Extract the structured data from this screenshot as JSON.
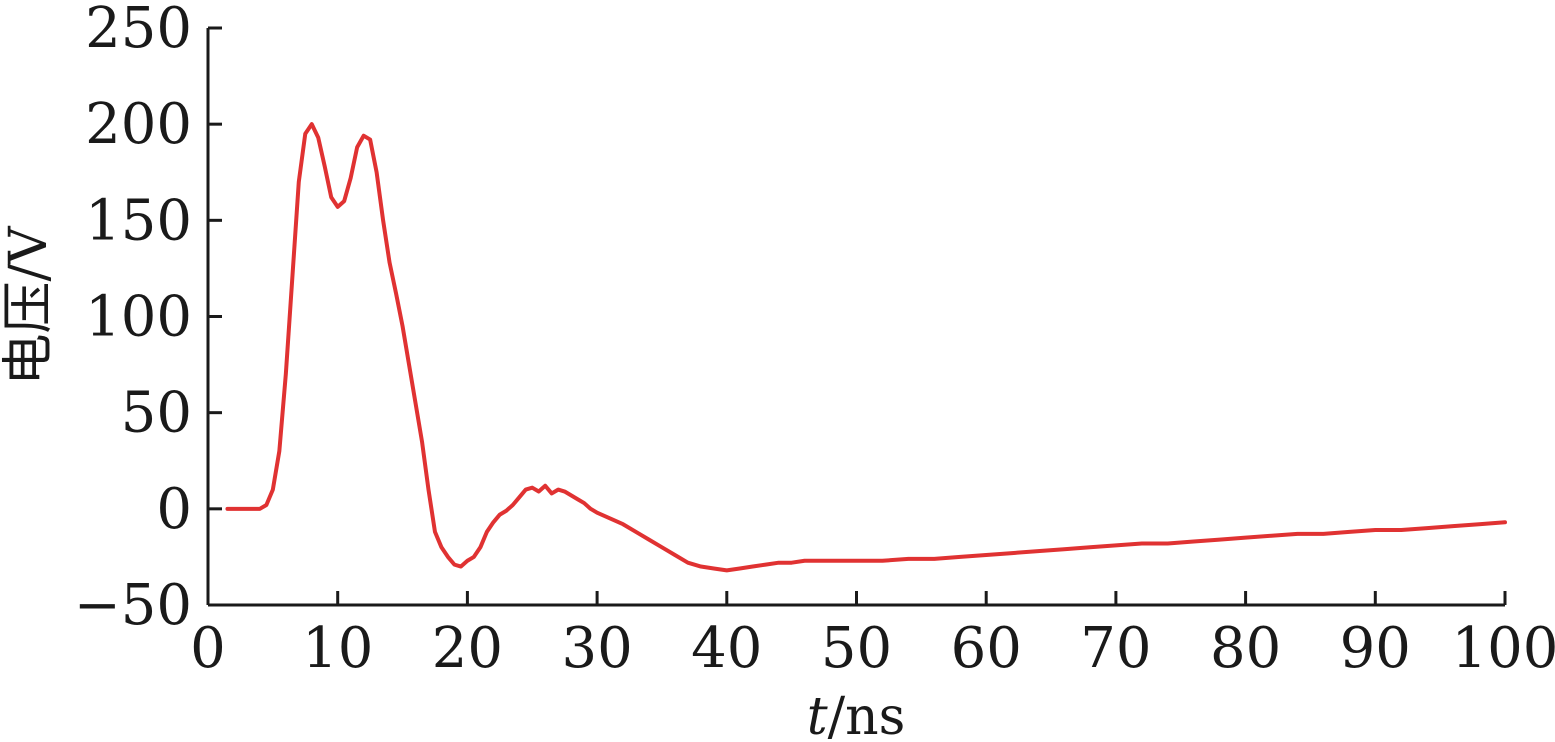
{
  "chart_data": {
    "type": "line",
    "title": "",
    "xlabel_var": "t",
    "xlabel_unit": "/ns",
    "ylabel": "电压/V",
    "xlim": [
      0,
      100
    ],
    "ylim": [
      -50,
      250
    ],
    "xticks": [
      0,
      10,
      20,
      30,
      40,
      50,
      60,
      70,
      80,
      90,
      100
    ],
    "yticks": [
      -50,
      0,
      50,
      100,
      150,
      200,
      250
    ],
    "xtick_labels": [
      "0",
      "10",
      "20",
      "30",
      "40",
      "50",
      "60",
      "70",
      "80",
      "90",
      "100"
    ],
    "ytick_labels": [
      "−50",
      "0",
      "50",
      "100",
      "150",
      "200",
      "250"
    ],
    "grid": false,
    "legend": "none",
    "series": [
      {
        "color": "#e03232",
        "x": [
          1.5,
          2,
          3,
          3.5,
          4,
          4.5,
          5,
          5.5,
          6,
          6.5,
          7,
          7.5,
          8,
          8.5,
          9,
          9.5,
          10,
          10.5,
          11,
          11.5,
          12,
          12.5,
          13,
          13.5,
          14,
          14.5,
          15,
          15.5,
          16,
          16.5,
          17,
          17.5,
          18,
          18.5,
          19,
          19.5,
          20,
          20.5,
          21,
          21.5,
          22,
          22.5,
          23,
          23.5,
          24,
          24.5,
          25,
          25.5,
          26,
          26.5,
          27,
          27.5,
          28,
          28.5,
          29,
          29.5,
          30,
          31,
          32,
          33,
          34,
          35,
          36,
          37,
          38,
          39,
          40,
          41,
          42,
          43,
          44,
          45,
          46,
          48,
          50,
          52,
          54,
          56,
          58,
          60,
          62,
          64,
          66,
          68,
          70,
          72,
          74,
          76,
          78,
          80,
          82,
          84,
          86,
          88,
          90,
          92,
          94,
          96,
          98,
          100
        ],
        "y": [
          0,
          0,
          0,
          0,
          0,
          2,
          10,
          30,
          70,
          120,
          170,
          195,
          200,
          193,
          178,
          162,
          157,
          160,
          172,
          188,
          194,
          192,
          175,
          150,
          128,
          112,
          95,
          75,
          55,
          35,
          10,
          -12,
          -20,
          -25,
          -29,
          -30,
          -27,
          -25,
          -20,
          -12,
          -7,
          -3,
          -1,
          2,
          6,
          10,
          11,
          9,
          12,
          8,
          10,
          9,
          7,
          5,
          3,
          0,
          -2,
          -5,
          -8,
          -12,
          -16,
          -20,
          -24,
          -28,
          -30,
          -31,
          -32,
          -31,
          -30,
          -29,
          -28,
          -28,
          -27,
          -27,
          -27,
          -27,
          -26,
          -26,
          -25,
          -24,
          -23,
          -22,
          -21,
          -20,
          -19,
          -18,
          -18,
          -17,
          -16,
          -15,
          -14,
          -13,
          -13,
          -12,
          -11,
          -11,
          -10,
          -9,
          -8,
          -7
        ]
      }
    ]
  }
}
